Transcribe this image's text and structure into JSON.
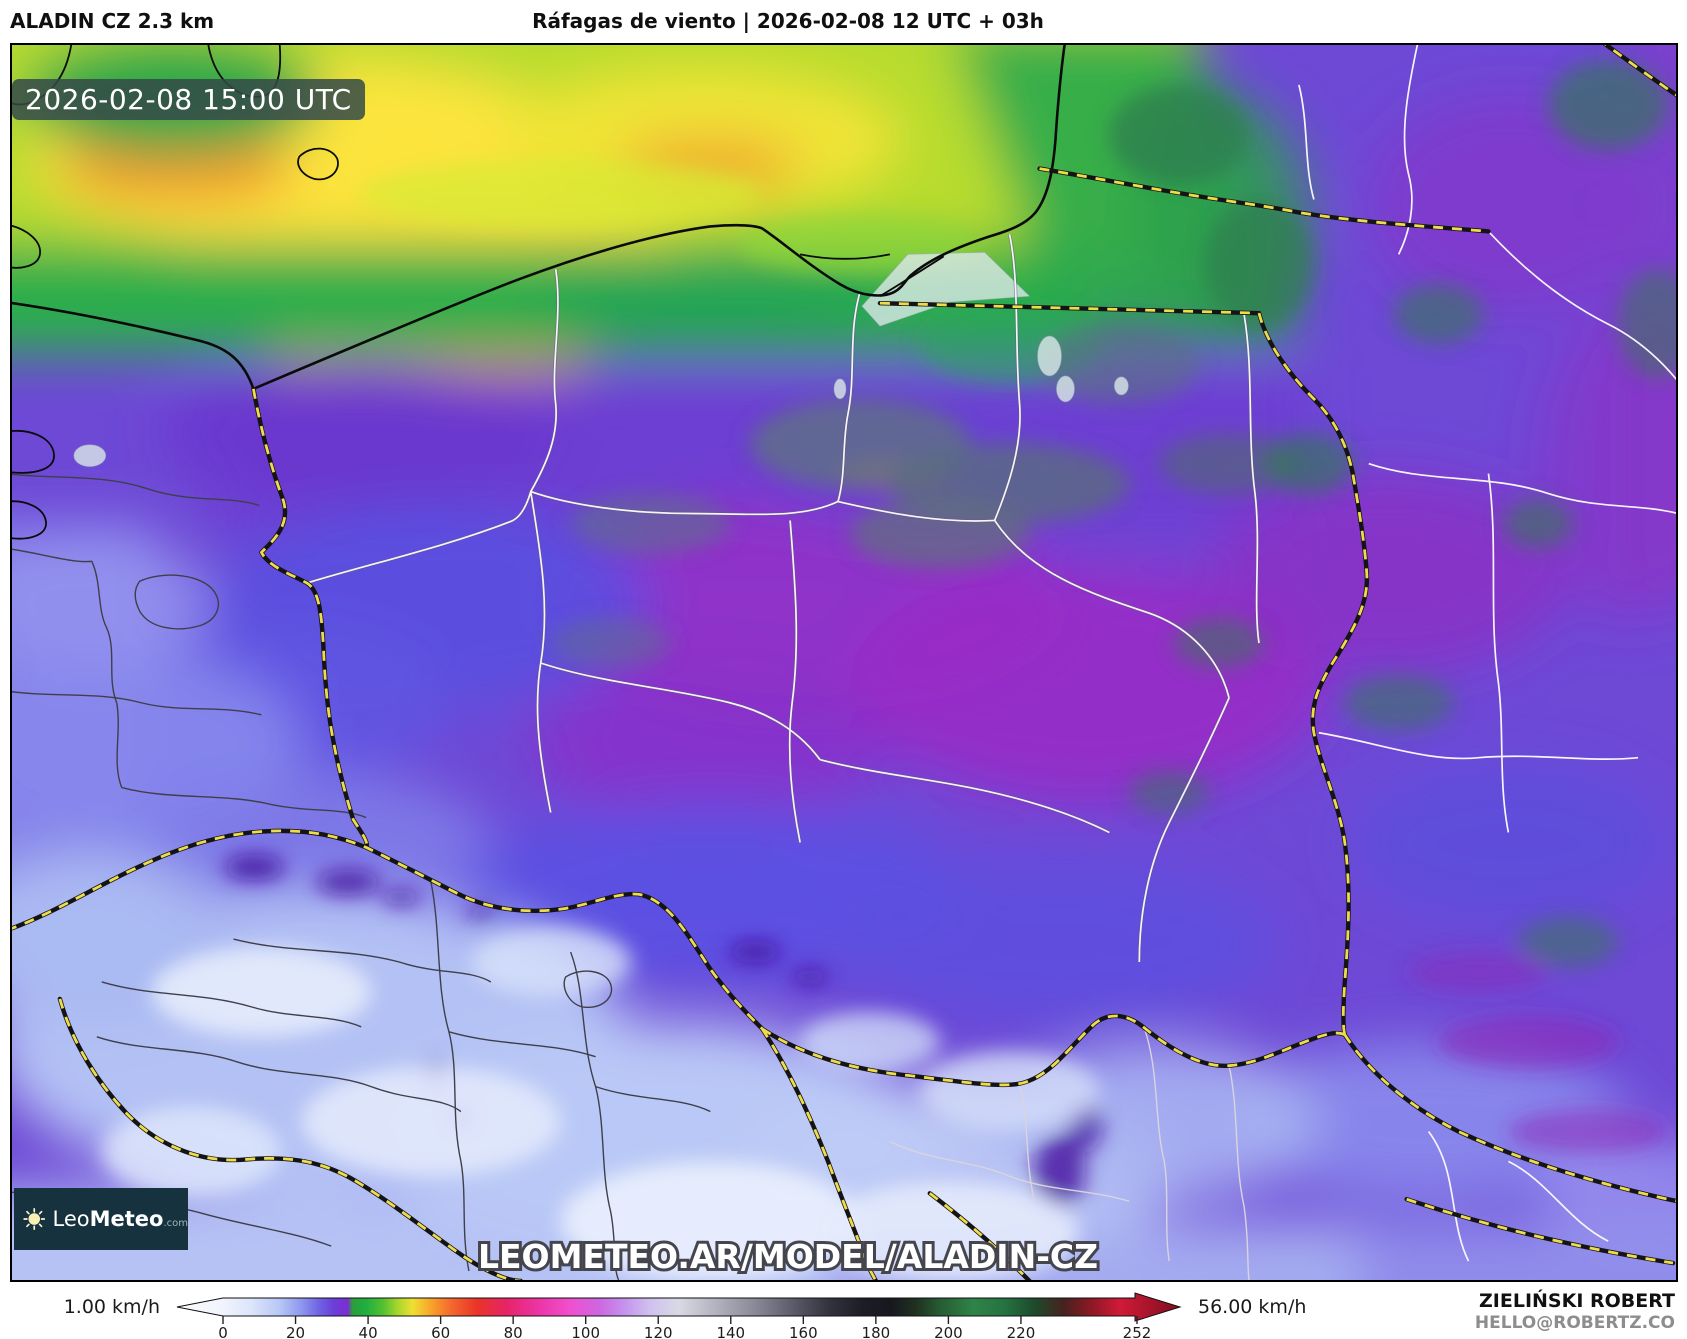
{
  "header": {
    "model_label": "ALADIN CZ 2.3 km",
    "title": "Ráfagas de viento | 2026-02-08 12 UTC + 03h"
  },
  "map": {
    "timestamp": "2026-02-08 15:00 UTC",
    "watermark": "LEOMETEO.AR/MODEL/ALADIN-CZ"
  },
  "logo": {
    "leo": "Leo",
    "meteo": "Meteo",
    "tld": ".com"
  },
  "colorbar": {
    "left_label": "1.00 km/h",
    "right_label": "56.00 km/h",
    "ticks": [
      0,
      20,
      40,
      60,
      80,
      100,
      120,
      140,
      160,
      180,
      200,
      220,
      252
    ],
    "gradient_stops": [
      [
        "0%",
        "#fbfcff"
      ],
      [
        "4.5%",
        "#f1f4fc"
      ],
      [
        "7.4%",
        "#dce5fa"
      ],
      [
        "10.2%",
        "#b8c7f5"
      ],
      [
        "12.4%",
        "#8e97ef"
      ],
      [
        "14.2%",
        "#6f62e4"
      ],
      [
        "15.6%",
        "#6b3fd9"
      ],
      [
        "17%",
        "#7c2dd2"
      ],
      [
        "17.5%",
        "#2b9e3c"
      ],
      [
        "18.8%",
        "#1fae40"
      ],
      [
        "20.6%",
        "#56c030"
      ],
      [
        "22%",
        "#a6d72c"
      ],
      [
        "23.5%",
        "#efdf32"
      ],
      [
        "25.3%",
        "#f8a42a"
      ],
      [
        "27.4%",
        "#f4662e"
      ],
      [
        "29.9%",
        "#e93428"
      ],
      [
        "32.8%",
        "#e62466"
      ],
      [
        "36%",
        "#ec34a4"
      ],
      [
        "39.2%",
        "#f050ce"
      ],
      [
        "42.1%",
        "#ce66e2"
      ],
      [
        "44.6%",
        "#c493ec"
      ],
      [
        "47.1%",
        "#cfc0f0"
      ],
      [
        "50%",
        "#d9d9e4"
      ],
      [
        "53.6%",
        "#b4b4c0"
      ],
      [
        "57.5%",
        "#8a8a98"
      ],
      [
        "61.5%",
        "#5a5a68"
      ],
      [
        "65%",
        "#33333e"
      ],
      [
        "68.3%",
        "#1d1d26"
      ],
      [
        "71.1%",
        "#17171e"
      ],
      [
        "73.6%",
        "#203020"
      ],
      [
        "76.1%",
        "#275c33"
      ],
      [
        "79.4%",
        "#2e8448"
      ],
      [
        "82.6%",
        "#257240"
      ],
      [
        "85.5%",
        "#1d4a2c"
      ],
      [
        "88.4%",
        "#46221e"
      ],
      [
        "91.2%",
        "#8e1824"
      ],
      [
        "94%",
        "#d01a38"
      ],
      [
        "100%",
        "#7e0e20"
      ]
    ]
  },
  "credits": {
    "author": "ZIELIŃSKI ROBERT",
    "contact": "HELLO@ROBERTZ.CO"
  },
  "colors": {
    "border_dash_yellow": "#efdc4a",
    "badge_bg": "rgba(52,74,72,0.85)",
    "logo_bg": "#16323e",
    "sea_high_wind": "#fce43c",
    "land_low_wind": "#b9c8f6",
    "land_mid_wind": "#6e49d6"
  }
}
